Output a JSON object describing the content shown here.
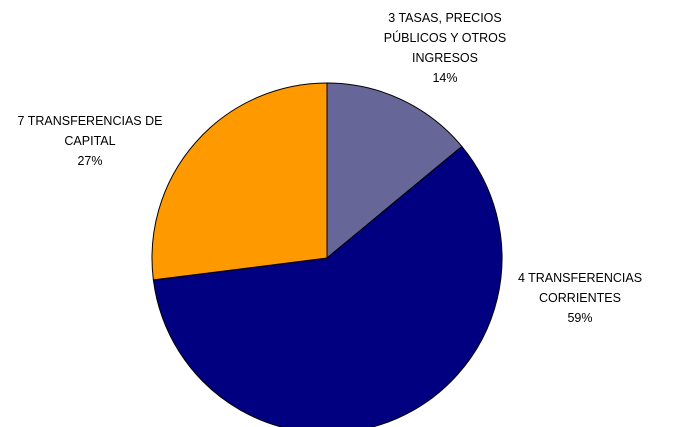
{
  "chart_data": {
    "type": "pie",
    "categories": [
      "3 TASAS, PRECIOS PÚBLICOS Y OTROS INGRESOS",
      "4 TRANSFERENCIAS CORRIENTES",
      "7 TRANSFERENCIAS DE CAPITAL"
    ],
    "values": [
      14,
      59,
      27
    ],
    "value_labels": [
      "14%",
      "59%",
      "27%"
    ],
    "colors": [
      "#666699",
      "#000080",
      "#ff9900"
    ]
  }
}
